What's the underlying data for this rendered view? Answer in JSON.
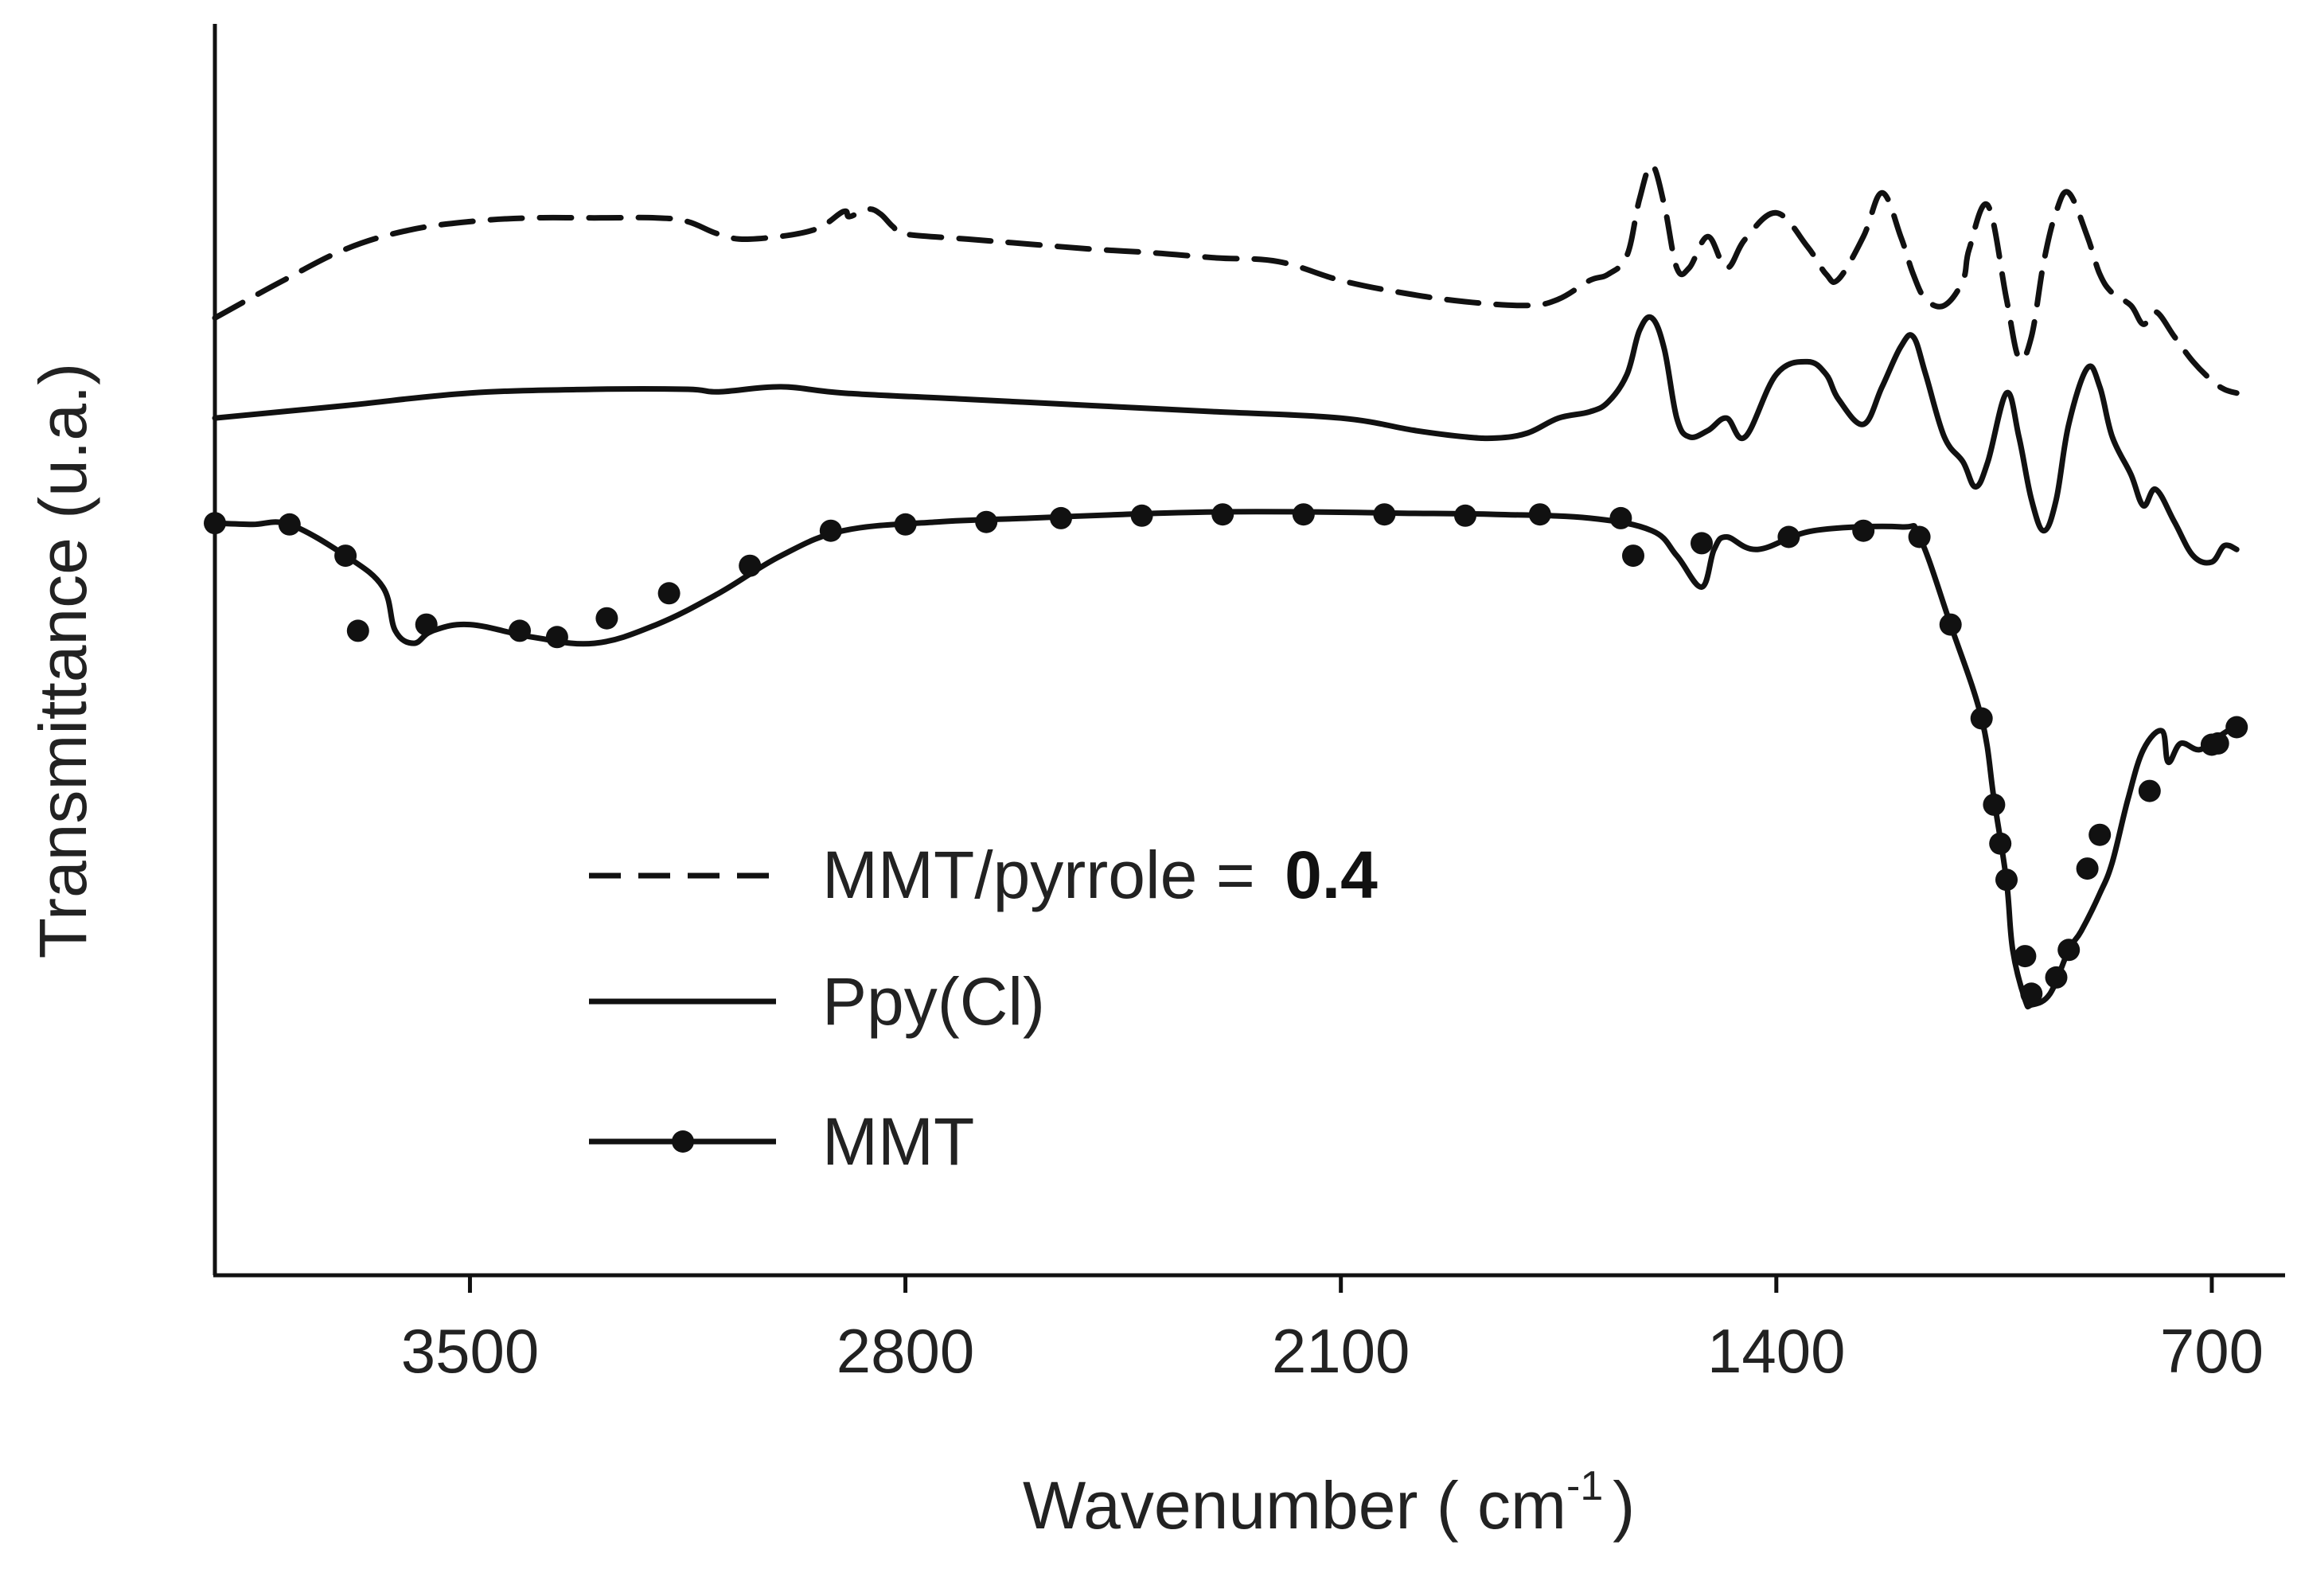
{
  "chart_data": {
    "type": "line",
    "title": "",
    "xlabel": "Wavenumber ( cm",
    "xlabel_superscript": "-1",
    "xlabel_close": ")",
    "ylabel": "Transmittance (u.a.)",
    "x_reversed": true,
    "xlim": [
      3910,
      650
    ],
    "ylim": [
      0,
      100
    ],
    "y_ticks_shown": false,
    "x_ticks": [
      3500,
      2800,
      2100,
      1400,
      700
    ],
    "x_tick_labels": [
      "3500",
      "2800",
      "2100",
      "1400",
      "700"
    ],
    "legend_position": "center-left",
    "series": [
      {
        "name": "MMT/pyrrole = ",
        "name_value": "0.4",
        "style": "dashed",
        "color": "#111111",
        "x": [
          3910,
          3800,
          3700,
          3600,
          3500,
          3400,
          3300,
          3200,
          3150,
          3100,
          3050,
          2950,
          2900,
          2890,
          2860,
          2840,
          2820,
          2800,
          2700,
          2600,
          2500,
          2400,
          2300,
          2200,
          2100,
          2000,
          1900,
          1800,
          1750,
          1700,
          1670,
          1640,
          1620,
          1600,
          1580,
          1560,
          1540,
          1510,
          1480,
          1450,
          1400,
          1350,
          1320,
          1300,
          1260,
          1230,
          1200,
          1180,
          1160,
          1130,
          1100,
          1090,
          1060,
          1030,
          1010,
          990,
          970,
          950,
          930,
          900,
          880,
          860,
          830,
          810,
          790,
          760,
          730,
          700,
          680,
          660
        ],
        "y": [
          76.5,
          79.5,
          82,
          83.5,
          84.2,
          84.5,
          84.5,
          84.5,
          84.2,
          83.2,
          82.8,
          83.5,
          85,
          84.6,
          85.2,
          84.8,
          83.8,
          83.2,
          82.8,
          82.4,
          82,
          81.7,
          81.3,
          81,
          79.5,
          78.5,
          77.8,
          77.5,
          78,
          79.5,
          80,
          81.5,
          86,
          88.7,
          85.5,
          80.5,
          80.5,
          83,
          80.5,
          82.8,
          84.9,
          82.2,
          80,
          79.6,
          83,
          86.5,
          83,
          80,
          78,
          77.5,
          79.5,
          82,
          85.5,
          78,
          73.3,
          75,
          81,
          85,
          86.5,
          83,
          80,
          78.5,
          77.5,
          76,
          77,
          75,
          73,
          71.5,
          70.8,
          70.5
        ]
      },
      {
        "name": "Ppy(Cl)",
        "style": "solid",
        "color": "#111111",
        "x": [
          3910,
          3700,
          3500,
          3300,
          3150,
          3100,
          3000,
          2900,
          2700,
          2500,
          2300,
          2100,
          1980,
          1900,
          1850,
          1800,
          1750,
          1700,
          1670,
          1640,
          1620,
          1600,
          1580,
          1560,
          1540,
          1510,
          1480,
          1450,
          1400,
          1350,
          1320,
          1300,
          1260,
          1230,
          1200,
          1180,
          1160,
          1130,
          1100,
          1080,
          1060,
          1030,
          1010,
          990,
          970,
          950,
          930,
          900,
          880,
          860,
          830,
          810,
          790,
          760,
          730,
          700,
          680,
          660
        ],
        "y": [
          68.5,
          69.5,
          70.5,
          70.8,
          70.8,
          70.6,
          71,
          70.5,
          70,
          69.5,
          69,
          68.5,
          67.5,
          67,
          66.9,
          67.3,
          68.5,
          69,
          69.8,
          72,
          75.5,
          76.5,
          74,
          68.5,
          67,
          67.5,
          68.5,
          67,
          72,
          73,
          72,
          70,
          68,
          71,
          74.2,
          75,
          72,
          67,
          65,
          63,
          65,
          70.5,
          67,
          62,
          59.5,
          62,
          68,
          72.5,
          71,
          67,
          64,
          61.5,
          62.8,
          60.2,
          57.5,
          57,
          58.3,
          58
        ],
        "markers": false
      },
      {
        "name": "MMT",
        "style": "solid-with-markers",
        "color": "#111111",
        "x": [
          3910,
          3850,
          3790,
          3700,
          3640,
          3620,
          3590,
          3560,
          3500,
          3400,
          3300,
          3200,
          3100,
          3000,
          2900,
          2750,
          2600,
          2450,
          2300,
          2150,
          2000,
          1850,
          1700,
          1600,
          1560,
          1520,
          1500,
          1480,
          1430,
          1340,
          1200,
          1170,
          1120,
          1070,
          1050,
          1030,
          1020,
          1000,
          990,
          960,
          930,
          910,
          880,
          860,
          835,
          810,
          780,
          770,
          750,
          720,
          690,
          660
        ],
        "y": [
          60.1,
          60,
          60,
          57.5,
          55,
          51.5,
          50.5,
          51.5,
          52,
          51,
          50.5,
          52,
          54.5,
          57.5,
          59.5,
          60.2,
          60.5,
          60.8,
          61,
          61,
          60.9,
          60.8,
          60.5,
          59.5,
          57.5,
          55,
          58,
          59,
          58,
          59.5,
          59.8,
          59,
          52,
          44.5,
          38,
          31.5,
          26,
          22,
          21.6,
          22.5,
          26,
          27.5,
          30.5,
          33,
          38,
          42,
          43.5,
          41,
          42.5,
          42,
          43,
          44
        ],
        "markers": true,
        "marker_x": [
          3910,
          3790,
          3700,
          3680,
          3570,
          3420,
          3360,
          3280,
          3180,
          3050,
          2920,
          2800,
          2670,
          2550,
          2420,
          2290,
          2160,
          2030,
          1900,
          1780,
          1650,
          1630,
          1520,
          1380,
          1260,
          1170,
          1120,
          1070,
          1050,
          1040,
          1030,
          1000,
          990,
          950,
          930,
          900,
          880,
          800,
          700,
          690,
          660
        ],
        "marker_y": [
          60.1,
          60,
          57.5,
          51.5,
          52,
          51.5,
          51,
          52.5,
          54.5,
          56.7,
          59.5,
          60,
          60.2,
          60.5,
          60.7,
          60.8,
          60.8,
          60.8,
          60.7,
          60.8,
          60.5,
          57.5,
          58.5,
          59,
          59.5,
          59,
          52,
          44.5,
          37.6,
          34.5,
          31.6,
          25.5,
          22.5,
          23.8,
          26,
          32.5,
          35.2,
          38.7,
          42.4,
          42.5,
          43.8
        ]
      }
    ]
  }
}
